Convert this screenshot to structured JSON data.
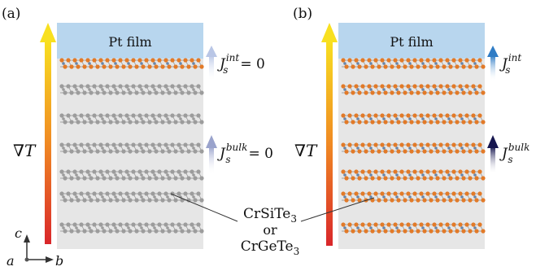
{
  "panel_a": {
    "label": "(a)",
    "film": "Pt film",
    "grad": "∇T",
    "j_int": {
      "J": "J",
      "sub": "s",
      "sup": "int",
      "rest": "= 0"
    },
    "j_bulk": {
      "J": "J",
      "sub": "s",
      "sup": "bulk",
      "rest": "= 0"
    }
  },
  "panel_b": {
    "label": "(b)",
    "film": "Pt film",
    "grad": "∇T",
    "j_int": {
      "J": "J",
      "sub": "s",
      "sup": "int"
    },
    "j_bulk": {
      "J": "J",
      "sub": "s",
      "sup": "bulk"
    }
  },
  "material": {
    "line1": "CrSiTe",
    "line1_sub": "3",
    "line2": "or",
    "line3": "CrGeTe",
    "line3_sub": "3"
  },
  "axes": {
    "a": "a",
    "b": "b",
    "c": "c"
  },
  "colors": {
    "film": "#b8d6ee",
    "box": "#e6e6e6",
    "atom_gray": "#9c9c9c",
    "atom_orange": "#e27a28",
    "atom_blue": "#6b86a8",
    "arrow_int_b": "#3a7cc0",
    "arrow_bulk_b": "#1a1a55",
    "arrow_faint_a": "#b7bdd8"
  }
}
